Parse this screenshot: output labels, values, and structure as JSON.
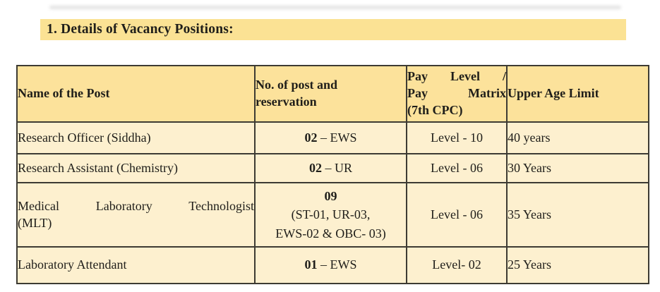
{
  "document": {
    "section_heading": "1. Details of Vacancy Positions:"
  },
  "colors": {
    "heading_highlight": "#fbe294",
    "table_header_bg": "#fce29b",
    "table_body_bg": "#fdf0cf",
    "table_border": "#3d3b33",
    "text": "#1f1e1a"
  },
  "vacancy_table": {
    "headers": {
      "name_of_post": "Name of the Post",
      "post_count_line1": "No. of post and",
      "post_count_line2": "reservation",
      "pay_level_line1": "Pay Level /",
      "pay_level_line2": "Pay Matrix",
      "pay_level_line3": "(7th CPC)",
      "upper_age_limit": "Upper Age Limit"
    },
    "rows": [
      {
        "post_name": "Research Officer (Siddha)",
        "post_count": "02",
        "reservation": "– EWS",
        "pay_level": "Level - 10",
        "upper_age_limit": "40 years"
      },
      {
        "post_name": "Research Assistant (Chemistry)",
        "post_count": "02",
        "reservation": "– UR",
        "pay_level": "Level - 06",
        "upper_age_limit": "30 Years"
      },
      {
        "post_name_line1": "Medical Laboratory Technologist",
        "post_name_line2": "(MLT)",
        "post_count": "09",
        "reservation_line1": "(ST-01, UR-03,",
        "reservation_line2": "EWS-02 & OBC- 03)",
        "pay_level": "Level - 06",
        "upper_age_limit": "35 Years"
      },
      {
        "post_name": "Laboratory Attendant",
        "post_count": "01",
        "reservation": "– EWS",
        "pay_level": "Level- 02",
        "upper_age_limit": "25 Years"
      }
    ]
  }
}
